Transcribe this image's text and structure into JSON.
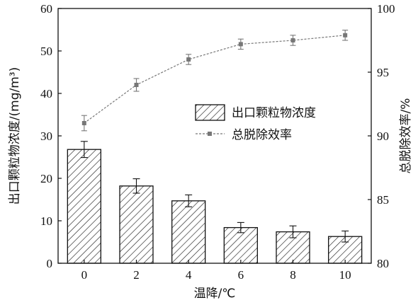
{
  "chart_data": {
    "type": "bar",
    "categories": [
      "0",
      "2",
      "4",
      "6",
      "8",
      "10"
    ],
    "xlabel": "温降/℃",
    "ylabel_left": "出口颗粒物浓度/(mg/m³)",
    "ylabel_right": "总脱除效率/%",
    "ylim_left": [
      0,
      60
    ],
    "yticks_left": [
      "0",
      "10",
      "20",
      "30",
      "40",
      "50",
      "60"
    ],
    "ylim_right": [
      80,
      100
    ],
    "yticks_right": [
      "80",
      "85",
      "90",
      "95",
      "100"
    ],
    "grid": false,
    "legend_position": "center-right",
    "series": [
      {
        "name": "出口颗粒物浓度",
        "kind": "bar",
        "axis": "left",
        "hatch": "diagonal",
        "values": [
          26.8,
          18.2,
          14.7,
          8.4,
          7.4,
          6.3
        ],
        "errors": [
          1.9,
          1.7,
          1.4,
          1.2,
          1.4,
          1.3
        ]
      },
      {
        "name": "总脱除效率",
        "kind": "line",
        "axis": "right",
        "line_style": "dashed",
        "marker": "square",
        "color": "#777777",
        "values": [
          91.0,
          94.0,
          96.0,
          97.2,
          97.5,
          97.9
        ],
        "errors": [
          0.6,
          0.5,
          0.4,
          0.4,
          0.4,
          0.4
        ]
      }
    ]
  }
}
